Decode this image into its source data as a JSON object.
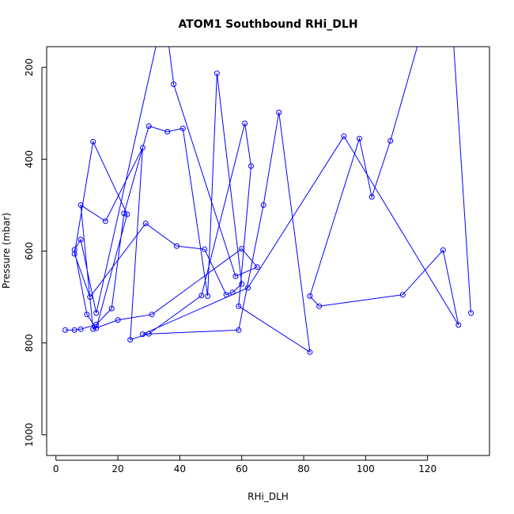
{
  "chart_data": {
    "type": "line",
    "title": "ATOM1 Southbound RHi_DLH",
    "xlabel": "RHi_DLH",
    "ylabel": "Pressure (mbar)",
    "xlim": [
      -3,
      140
    ],
    "ylim": [
      1045,
      155
    ],
    "y_reversed": true,
    "grid": false,
    "legend": "none",
    "x_ticks": [
      0,
      20,
      40,
      60,
      80,
      100,
      120
    ],
    "y_ticks": [
      200,
      400,
      600,
      800,
      1000
    ],
    "series": [
      {
        "color": "#0000ff",
        "marker": "open-circle",
        "line": true,
        "x": [
          3,
          6,
          8,
          13,
          18,
          22,
          30,
          36,
          41,
          49,
          52,
          60,
          57,
          55,
          48,
          39,
          29,
          11,
          6,
          12,
          23,
          13,
          10,
          6,
          8,
          13,
          35,
          38,
          58,
          65,
          60,
          31,
          20,
          12,
          8,
          16,
          28,
          24,
          30,
          47,
          61,
          63,
          59,
          82,
          72,
          67,
          59,
          28,
          62,
          93,
          130,
          125,
          112,
          85,
          82,
          98,
          102,
          108,
          119,
          127,
          134
        ],
        "y": [
          772,
          772,
          770,
          760,
          725,
          518,
          328,
          340,
          333,
          698,
          213,
          672,
          690,
          695,
          596,
          589,
          540,
          700,
          606,
          362,
          520,
          768,
          738,
          597,
          575,
          735,
          73,
          237,
          655,
          635,
          595,
          738,
          750,
          770,
          500,
          535,
          375,
          793,
          780,
          697,
          322,
          415,
          720,
          820,
          298,
          500,
          772,
          781,
          680,
          350,
          761,
          598,
          695,
          720,
          698,
          355,
          482,
          360,
          100,
          0,
          735
        ]
      }
    ]
  }
}
